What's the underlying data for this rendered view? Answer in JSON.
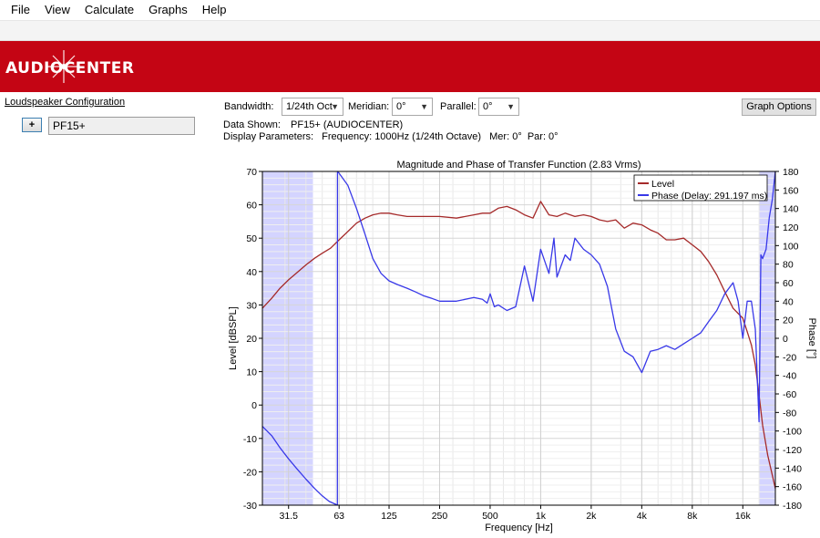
{
  "menu": [
    "File",
    "View",
    "Calculate",
    "Graphs",
    "Help"
  ],
  "brand": {
    "logo_text": "AUDIOCENTER",
    "color": "#c40514"
  },
  "left_panel": {
    "title": "Loudspeaker Configuration",
    "add_button_label": "+",
    "speaker_name": "PF15+"
  },
  "controls": {
    "bandwidth_label": "Bandwidth:",
    "bandwidth_value": "1/24th Oct",
    "meridian_label": "Meridian:",
    "meridian_value": "0°",
    "parallel_label": "Parallel:",
    "parallel_value": "0°",
    "graph_options_label": "Graph Options"
  },
  "info": {
    "data_shown_label": "Data Shown:",
    "data_shown_value": "PF15+ (AUDIOCENTER)",
    "display_params_label": "Display Parameters:",
    "display_params_value": "Frequency: 1000Hz (1/24th Octave)   Mer: 0°  Par: 0°"
  },
  "chart_data": {
    "type": "line",
    "title": "Magnitude and Phase of Transfer Function (2.83 Vrms)",
    "xlabel": "Frequency [Hz]",
    "ylabel": "Level [dBSPL]",
    "y2label": "Phase [°]",
    "x_scale": "log",
    "xlim": [
      22,
      25000
    ],
    "ylim": [
      -30,
      70
    ],
    "y2lim": [
      -180,
      180
    ],
    "x_ticks": [
      31.5,
      63,
      125,
      250,
      500,
      1000,
      2000,
      4000,
      8000,
      16000
    ],
    "x_tick_labels": [
      "31.5",
      "63",
      "125",
      "250",
      "500",
      "1k",
      "2k",
      "4k",
      "8k",
      "16k"
    ],
    "y_ticks": [
      70,
      60,
      50,
      40,
      30,
      20,
      10,
      0,
      -10,
      -20,
      -30
    ],
    "y2_ticks": [
      180,
      160,
      140,
      120,
      100,
      80,
      60,
      40,
      20,
      0,
      -20,
      -40,
      -60,
      -80,
      -100,
      -120,
      -140,
      -160,
      -180
    ],
    "grid": true,
    "legend_position": "top-right",
    "shaded_regions": [
      {
        "from": 22,
        "to": 44
      },
      {
        "from": 20000,
        "to": 25000
      }
    ],
    "series": [
      {
        "name": "Level",
        "color": "#a52a2a",
        "axis": "left",
        "x": [
          22,
          25,
          28,
          31.5,
          35,
          40,
          45,
          50,
          56,
          63,
          71,
          80,
          90,
          100,
          112,
          125,
          140,
          160,
          180,
          200,
          250,
          315,
          400,
          450,
          500,
          560,
          630,
          710,
          800,
          900,
          1000,
          1120,
          1250,
          1400,
          1600,
          1800,
          2000,
          2240,
          2500,
          2800,
          3150,
          3550,
          4000,
          4500,
          5000,
          5600,
          6300,
          7100,
          8000,
          9000,
          10000,
          11200,
          12500,
          14000,
          16000,
          17000,
          18000,
          19000,
          20000,
          21000,
          22500,
          25000
        ],
        "y": [
          29,
          32,
          35,
          37.5,
          39.5,
          42,
          44,
          45.5,
          47,
          49.5,
          52,
          54.5,
          56,
          57,
          57.5,
          57.5,
          57,
          56.5,
          56.5,
          56.5,
          56.5,
          56,
          57,
          57.5,
          57.5,
          59,
          59.5,
          58.5,
          57,
          56,
          61,
          57,
          56.5,
          57.5,
          56.5,
          57,
          56.5,
          55.5,
          55,
          55.5,
          53,
          54.5,
          54,
          52.5,
          51.5,
          49.5,
          49.5,
          50,
          48,
          46,
          43,
          39,
          34,
          29,
          26,
          22,
          18,
          12,
          3,
          -6,
          -15,
          -25
        ]
      },
      {
        "name": "Phase (Delay: 291.197 ms)",
        "color": "#3838e8",
        "axis": "right",
        "x": [
          22,
          25,
          28,
          31.5,
          35,
          40,
          45,
          50,
          55,
          60,
          61.5,
          61.6,
          63,
          71,
          80,
          90,
          100,
          112,
          125,
          140,
          160,
          180,
          200,
          225,
          250,
          315,
          400,
          450,
          480,
          500,
          530,
          560,
          630,
          710,
          800,
          900,
          1000,
          1120,
          1200,
          1250,
          1400,
          1500,
          1600,
          1800,
          2000,
          2240,
          2500,
          2800,
          3150,
          3550,
          4000,
          4500,
          5000,
          5600,
          6300,
          7100,
          8000,
          9000,
          10000,
          11200,
          12500,
          14000,
          15000,
          16000,
          17000,
          18000,
          19000,
          20000,
          20500,
          21000,
          22000,
          23000,
          24000,
          25000
        ],
        "y": [
          -95,
          -105,
          -118,
          -130,
          -140,
          -152,
          -162,
          -170,
          -176,
          -179,
          -180,
          180,
          178,
          165,
          140,
          112,
          86,
          70,
          62,
          58,
          54,
          50,
          46,
          43,
          40,
          40,
          44,
          42,
          38,
          48,
          34,
          36,
          30,
          34,
          78,
          40,
          96,
          70,
          108,
          66,
          90,
          84,
          108,
          96,
          90,
          80,
          56,
          10,
          -14,
          -20,
          -37,
          -14,
          -12,
          -8,
          -12,
          -6,
          0,
          6,
          18,
          30,
          48,
          60,
          40,
          0,
          40,
          40,
          10,
          -90,
          90,
          86,
          96,
          130,
          150,
          180
        ]
      }
    ]
  }
}
